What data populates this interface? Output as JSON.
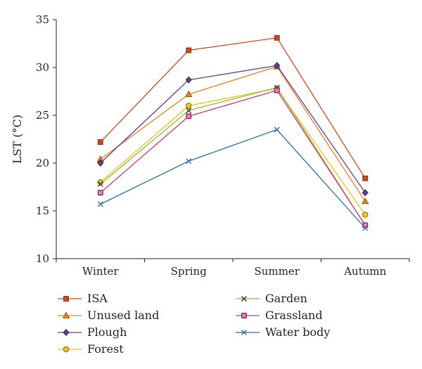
{
  "chart_data": {
    "type": "line",
    "ylabel": "LST (°C)",
    "xlabel": "",
    "categories": [
      "Winter",
      "Spring",
      "Summer",
      "Autumn"
    ],
    "ylim": [
      10,
      35
    ],
    "yticks": [
      10,
      15,
      20,
      25,
      30,
      35
    ],
    "grid": false,
    "legend_placement": "bottom",
    "series": [
      {
        "name": "ISA",
        "color": "#d2461e",
        "marker": "square",
        "values": [
          22.2,
          31.8,
          33.1,
          18.4
        ]
      },
      {
        "name": "Unused land",
        "color": "#e8821e",
        "marker": "triangle",
        "values": [
          20.4,
          27.2,
          30.1,
          16.0
        ]
      },
      {
        "name": "Plough",
        "color": "#6b3a91",
        "marker": "diamond",
        "values": [
          20.0,
          28.7,
          30.2,
          16.9
        ]
      },
      {
        "name": "Forest",
        "color": "#e9c21c",
        "marker": "circle",
        "values": [
          18.0,
          26.0,
          27.8,
          14.6
        ]
      },
      {
        "name": "Garden",
        "color": "#8cbe3c",
        "marker": "x",
        "values": [
          17.8,
          25.5,
          27.9,
          13.5
        ]
      },
      {
        "name": "Grassland",
        "color": "#d0377e",
        "marker": "square-x",
        "values": [
          16.9,
          24.9,
          27.6,
          13.5
        ]
      },
      {
        "name": "Water body",
        "color": "#2e6ea6",
        "marker": "x",
        "values": [
          15.7,
          20.2,
          23.5,
          13.2
        ]
      }
    ]
  }
}
